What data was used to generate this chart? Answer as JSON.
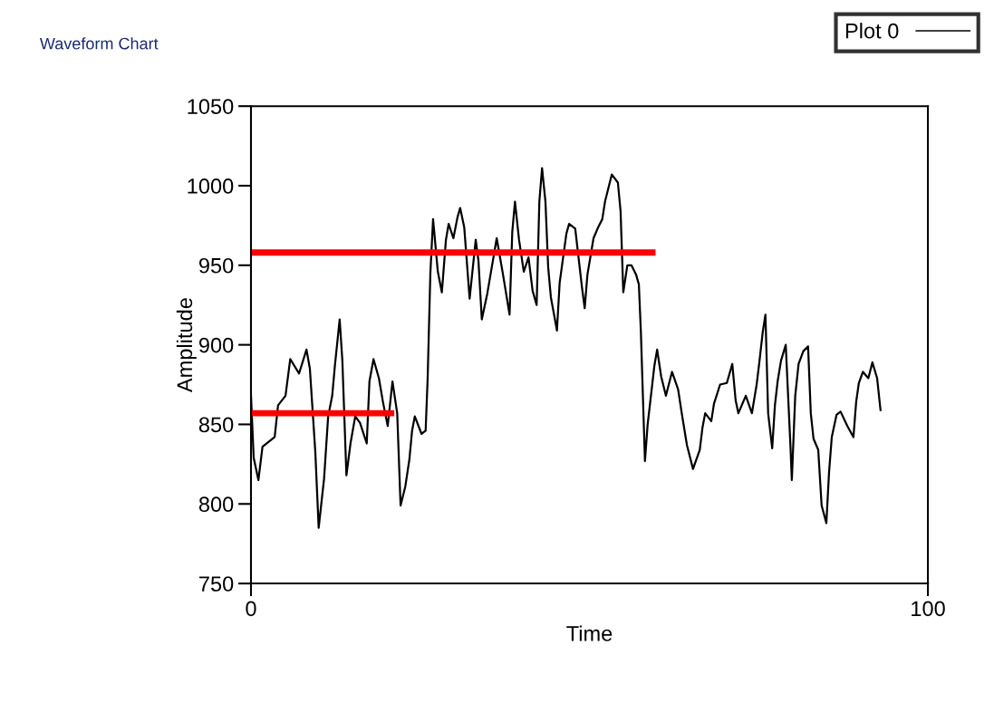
{
  "chart_data": {
    "type": "line",
    "title": "Waveform Chart",
    "xlabel": "Time",
    "ylabel": "Amplitude",
    "xlim": [
      0,
      100
    ],
    "xticks": [
      0,
      100
    ],
    "ylim": [
      750,
      1050
    ],
    "yticks": [
      750,
      800,
      850,
      900,
      950,
      1000,
      1050
    ],
    "grid": false,
    "legend": "top right",
    "marker": "none",
    "line_style": "solid",
    "series": [
      {
        "name": "Plot 0",
        "color": "#000000",
        "x": [
          0,
          0.4,
          1.1,
          1.7,
          3.5,
          4.0,
          5.1,
          5.8,
          7.1,
          8.2,
          8.7,
          9.5,
          10.0,
          10.8,
          11.4,
          12.0,
          12.4,
          13.1,
          13.5,
          14.1,
          14.7,
          15.4,
          16.1,
          17.1,
          17.5,
          18.1,
          18.9,
          19.5,
          20.2,
          20.9,
          21.6,
          22.1,
          22.8,
          23.4,
          23.8,
          24.2,
          25.2,
          25.8,
          26.1,
          26.5,
          26.9,
          27.6,
          28.2,
          28.8,
          29.2,
          29.9,
          30.5,
          30.9,
          31.5,
          32.3,
          33.2,
          33.6,
          34.1,
          34.9,
          35.5,
          36.3,
          37.2,
          38.2,
          38.6,
          39.0,
          39.6,
          40.3,
          41.0,
          41.6,
          42.2,
          42.6,
          43.0,
          43.5,
          43.9,
          44.3,
          45.2,
          45.6,
          46.6,
          47.0,
          47.9,
          48.9,
          49.3,
          49.7,
          50.6,
          51.3,
          51.9,
          52.3,
          53.3,
          54.2,
          54.6,
          55.0,
          55.6,
          56.2,
          56.9,
          57.3,
          57.6,
          58.2,
          58.6,
          59.6,
          60.0,
          60.6,
          61.3,
          62.2,
          63.1,
          63.6,
          64.4,
          65.3,
          66.3,
          66.7,
          67.1,
          68.0,
          68.4,
          69.3,
          70.3,
          71.1,
          71.6,
          72.0,
          73.1,
          74.0,
          74.7,
          75.1,
          75.6,
          76.0,
          76.4,
          77.0,
          77.4,
          77.8,
          78.3,
          79.0,
          79.7,
          79.9,
          80.4,
          80.9,
          81.6,
          82.3,
          82.7,
          83.1,
          83.8,
          84.3,
          85.0,
          85.4,
          85.8,
          86.5,
          87.1,
          88.1,
          89.0,
          89.4,
          89.8,
          90.4,
          91.2,
          91.8,
          92.5,
          93.0
        ],
        "values": [
          868,
          829,
          815,
          836,
          842,
          862,
          868,
          891,
          882,
          897,
          885,
          833,
          785,
          816,
          855,
          868,
          887,
          916,
          890,
          818,
          838,
          855,
          851,
          838,
          877,
          891,
          879,
          864,
          849,
          877,
          857,
          799,
          811,
          828,
          846,
          855,
          844,
          846,
          879,
          945,
          979,
          946,
          933,
          966,
          976,
          967,
          980,
          986,
          974,
          929,
          966,
          953,
          916,
          932,
          947,
          967,
          945,
          919,
          971,
          990,
          966,
          946,
          955,
          934,
          925,
          990,
          1011,
          990,
          949,
          930,
          909,
          939,
          970,
          976,
          973,
          936,
          923,
          944,
          967,
          974,
          979,
          990,
          1007,
          1002,
          984,
          933,
          950,
          950,
          944,
          938,
          908,
          827,
          850,
          887,
          897,
          880,
          868,
          883,
          872,
          858,
          837,
          822,
          834,
          848,
          857,
          852,
          863,
          875,
          876,
          888,
          865,
          857,
          868,
          857,
          875,
          889,
          908,
          919,
          857,
          835,
          862,
          877,
          890,
          900,
          836,
          815,
          868,
          888,
          896,
          899,
          857,
          841,
          834,
          799,
          788,
          820,
          842,
          856,
          858,
          849,
          842,
          864,
          876,
          883,
          879,
          889,
          879,
          859
        ]
      },
      {
        "color": "#ff0000",
        "x": [
          0,
          59.3
        ],
        "values": [
          958,
          958
        ]
      },
      {
        "color": "#ff0000",
        "x": [
          0,
          20.7
        ],
        "values": [
          857,
          857
        ]
      }
    ]
  }
}
